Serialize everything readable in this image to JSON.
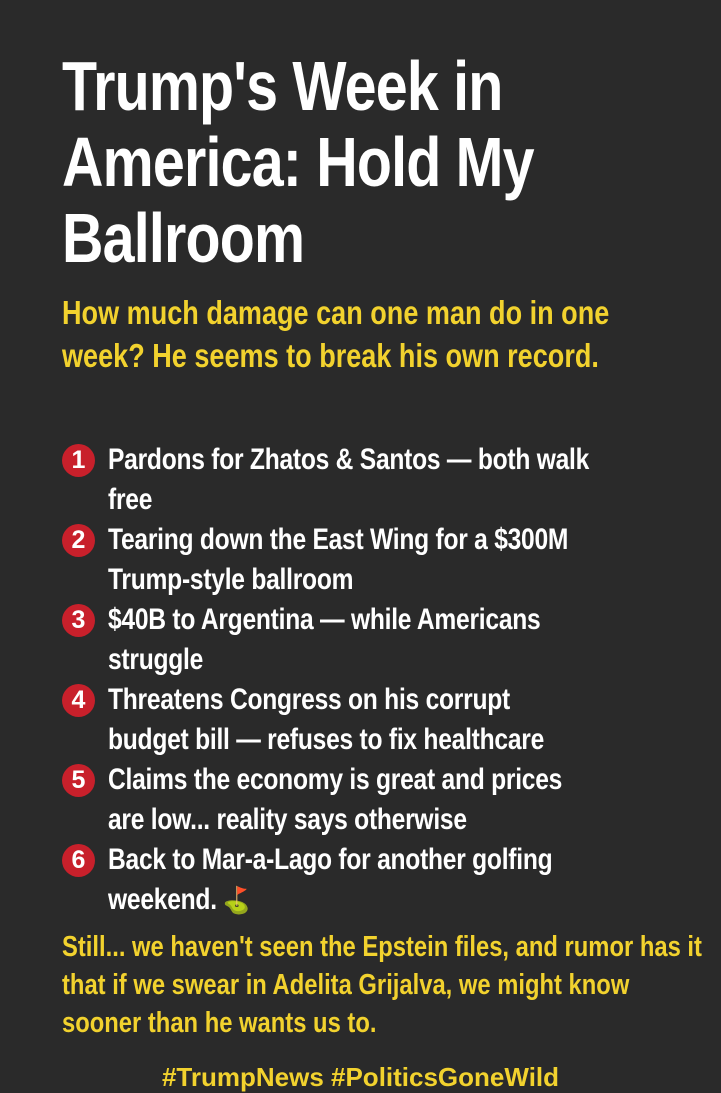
{
  "title": "Trump's Week in America: Hold My Ballroom",
  "subtitle": "How much damage can one man do in one week? He seems to break his own record.",
  "items": [
    {
      "number": "1",
      "text": "Pardons for Zhatos & Santos — both walk free"
    },
    {
      "number": "2",
      "text": "Tearing down the East Wing for a $300M Trump-style ballroom"
    },
    {
      "number": "3",
      "text": "$40B to Argentina — while Americans struggle"
    },
    {
      "number": "4",
      "text": "Threatens Congress on his corrupt budget bill — refuses to fix healthcare"
    },
    {
      "number": "5",
      "text": "Claims the economy is great and prices are low... reality says otherwise"
    },
    {
      "number": "6",
      "text": "Back to Mar-a-Lago for another golfing weekend.",
      "emoji": "⛳"
    }
  ],
  "closing": "Still... we haven't seen the Epstein files, and rumor has it that if we swear in Adelita Grijalva, we might know sooner than he wants us to.",
  "hashtags": "#TrumpNews #PoliticsGoneWild",
  "colors": {
    "background": "#2a2a2a",
    "accent_yellow": "#f2d22e",
    "number_badge": "#c8202b"
  }
}
